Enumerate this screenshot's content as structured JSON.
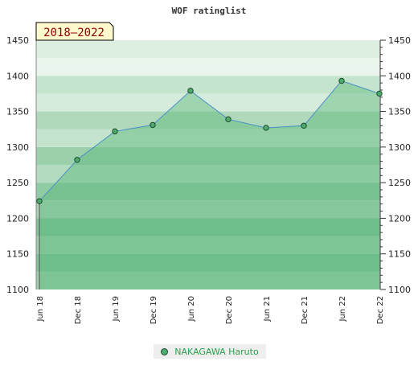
{
  "chart_data": {
    "type": "area",
    "title": "WOF ratinglist",
    "range_label": "2018–2022",
    "categories": [
      "Jun 18",
      "Dec 18",
      "Jun 19",
      "Dec 19",
      "Jun 20",
      "Dec 20",
      "Jun 21",
      "Dec 21",
      "Jun 22",
      "Dec 22"
    ],
    "series": [
      {
        "name": "NAKAGAWA Haruto",
        "values": [
          1224,
          1282,
          1322,
          1331,
          1379,
          1339,
          1327,
          1330,
          1393,
          1375
        ]
      }
    ],
    "ylim": [
      1100,
      1450
    ],
    "yticks": [
      1100,
      1150,
      1200,
      1250,
      1300,
      1350,
      1400,
      1450
    ],
    "ytick_labels": [
      "1100",
      "1150",
      "1200",
      "1250",
      "1300",
      "1350",
      "1400",
      "1450"
    ],
    "grid": false,
    "legend_position": "bottom",
    "colors": {
      "line": "#4a90c8",
      "fill": "#5cb87a",
      "marker": "#4dab6d",
      "range_label_bg": "#fffacd",
      "legend_text": "#2e9e4e"
    }
  }
}
